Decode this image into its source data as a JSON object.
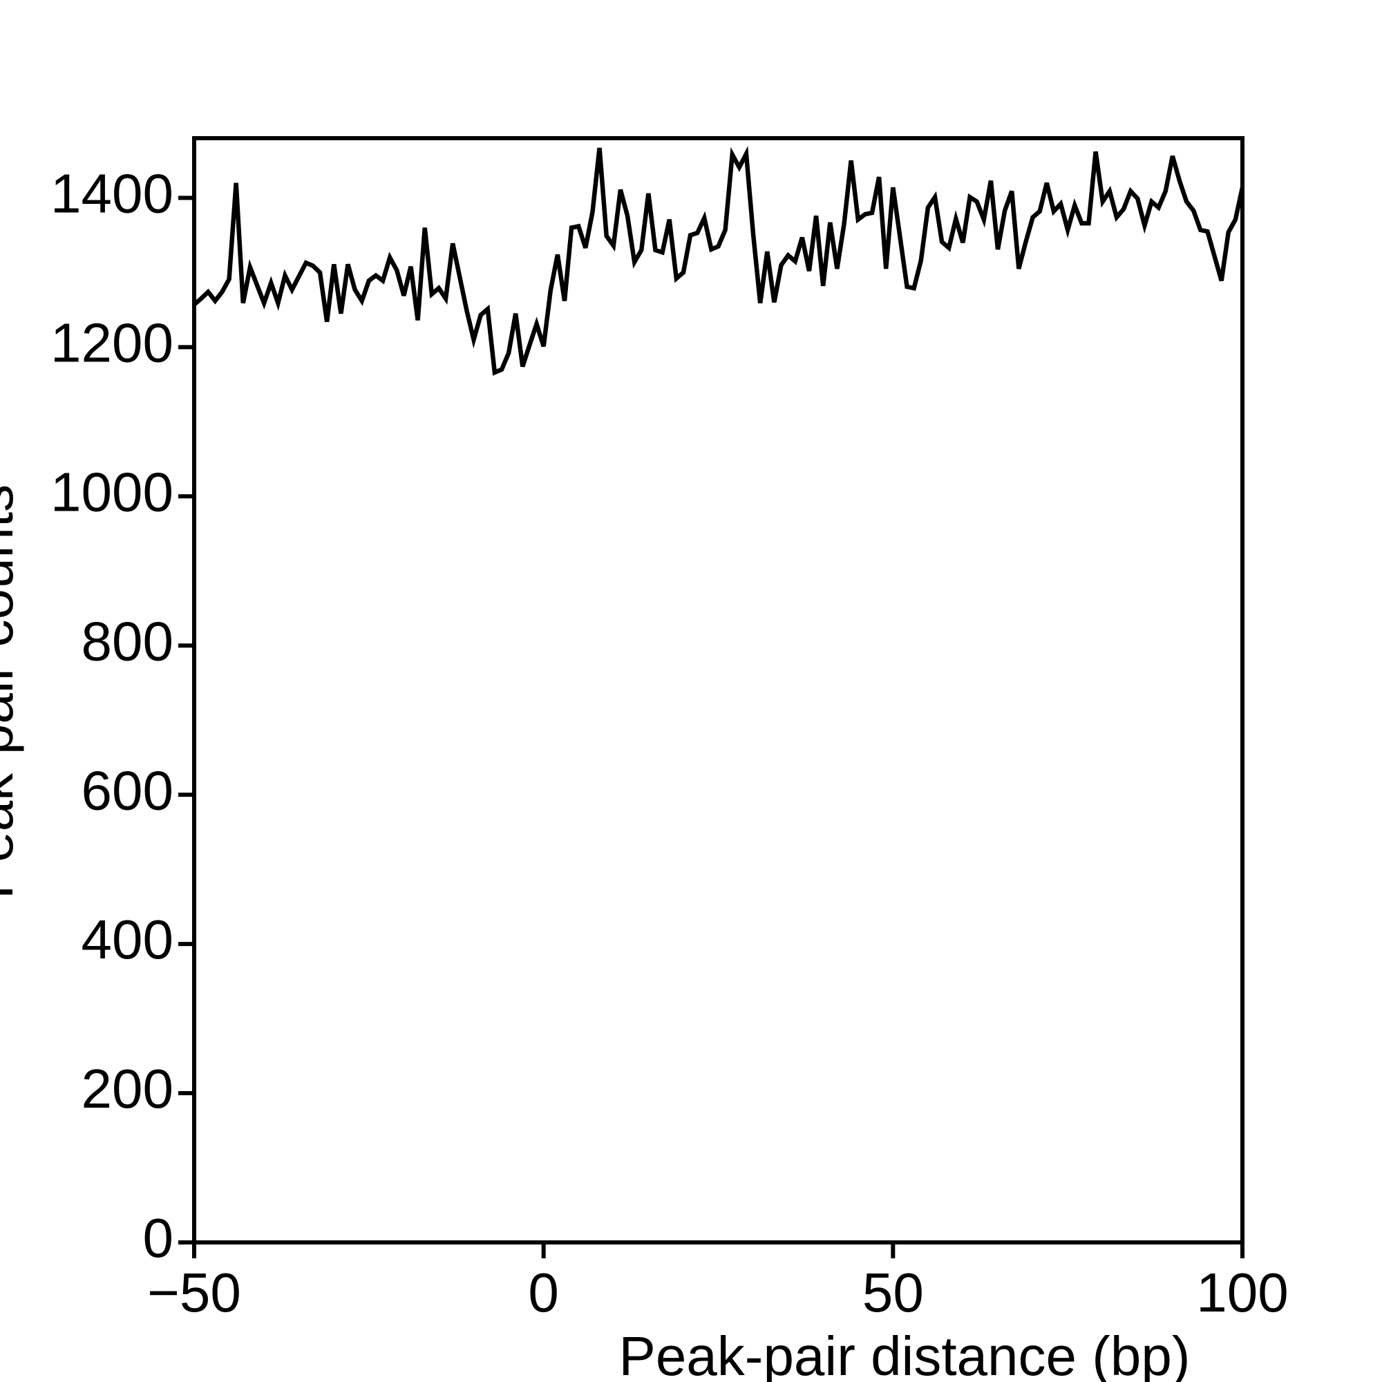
{
  "chart_data": {
    "type": "line",
    "x_label": "Peak-pair distance (bp)",
    "y_label": "Peak-pair counts",
    "x": [
      -50,
      -49,
      -48,
      -47,
      -46,
      -45,
      -44,
      -43,
      -42,
      -41,
      -40,
      -39,
      -38,
      -37,
      -36,
      -35,
      -34,
      -33,
      -32,
      -31,
      -30,
      -29,
      -28,
      -27,
      -26,
      -25,
      -24,
      -23,
      -22,
      -21,
      -20,
      -19,
      -18,
      -17,
      -16,
      -15,
      -14,
      -13,
      -12,
      -11,
      -10,
      -9,
      -8,
      -7,
      -6,
      -5,
      -4,
      -3,
      -2,
      -1,
      0,
      1,
      2,
      3,
      4,
      5,
      6,
      7,
      8,
      9,
      10,
      11,
      12,
      13,
      14,
      15,
      16,
      17,
      18,
      19,
      20,
      21,
      22,
      23,
      24,
      25,
      26,
      27,
      28,
      29,
      30,
      31,
      32,
      33,
      34,
      35,
      36,
      37,
      38,
      39,
      40,
      41,
      42,
      43,
      44,
      45,
      46,
      47,
      48,
      49,
      50,
      51,
      52,
      53,
      54,
      55,
      56,
      57,
      58,
      59,
      60,
      61,
      62,
      63,
      64,
      65,
      66,
      67,
      68,
      69,
      70,
      71,
      72,
      73,
      74,
      75,
      76,
      77,
      78,
      79,
      80,
      81,
      82,
      83,
      84,
      85,
      86,
      87,
      88,
      89,
      90,
      91,
      92,
      93,
      94,
      95,
      96,
      97,
      98,
      99,
      100
    ],
    "series": [
      {
        "color": "#000000",
        "values": [
          1257,
          1265,
          1274,
          1262,
          1274,
          1291,
          1420,
          1259,
          1307,
          1283,
          1259,
          1286,
          1259,
          1296,
          1277,
          1295,
          1313,
          1309,
          1300,
          1234,
          1311,
          1245,
          1311,
          1277,
          1262,
          1289,
          1296,
          1289,
          1320,
          1303,
          1269,
          1308,
          1236,
          1360,
          1271,
          1279,
          1265,
          1339,
          1294,
          1249,
          1210,
          1243,
          1251,
          1166,
          1170,
          1192,
          1245,
          1174,
          1203,
          1231,
          1201,
          1276,
          1324,
          1262,
          1360,
          1362,
          1333,
          1381,
          1467,
          1349,
          1336,
          1411,
          1376,
          1314,
          1330,
          1406,
          1330,
          1327,
          1371,
          1292,
          1300,
          1350,
          1353,
          1373,
          1331,
          1335,
          1357,
          1458,
          1441,
          1459,
          1351,
          1259,
          1328,
          1260,
          1310,
          1323,
          1315,
          1347,
          1302,
          1376,
          1282,
          1367,
          1305,
          1365,
          1450,
          1371,
          1378,
          1380,
          1428,
          1305,
          1414,
          1348,
          1281,
          1279,
          1316,
          1387,
          1401,
          1341,
          1333,
          1372,
          1340,
          1401,
          1395,
          1371,
          1423,
          1331,
          1383,
          1409,
          1305,
          1341,
          1374,
          1382,
          1420,
          1382,
          1392,
          1357,
          1390,
          1366,
          1366,
          1462,
          1395,
          1409,
          1374,
          1385,
          1409,
          1399,
          1363,
          1395,
          1387,
          1409,
          1456,
          1423,
          1395,
          1383,
          1357,
          1355,
          1322,
          1289,
          1354,
          1371,
          1414
        ]
      }
    ],
    "xlim": [
      -50,
      100
    ],
    "ylim": [
      0,
      1480
    ],
    "xticks": [
      {
        "value": -50,
        "label": "−50"
      },
      0,
      50,
      100
    ],
    "yticks": [
      0,
      200,
      400,
      600,
      800,
      1000,
      1200,
      1400
    ],
    "grid": false
  }
}
